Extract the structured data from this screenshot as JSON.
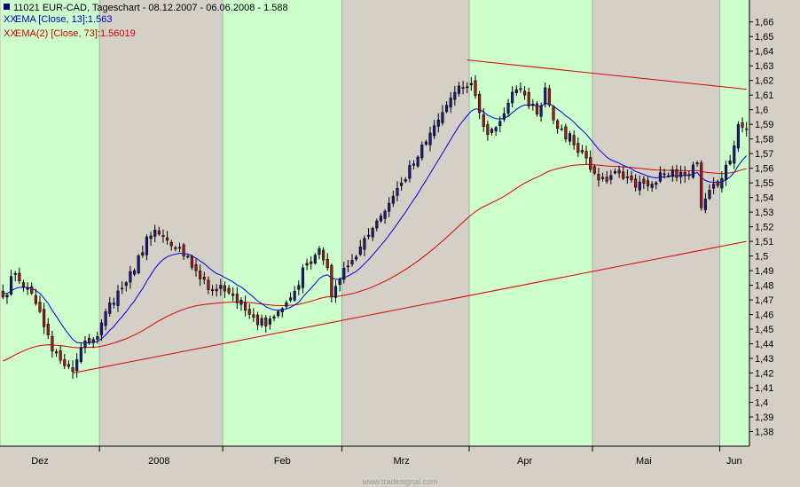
{
  "chart_data": {
    "type": "candlestick",
    "title": "11021  EUR-CAD, Tageschart - 08.12.2007 - 06.06.2008 - 1.588",
    "legend": [
      {
        "marker": "XX",
        "text": "EMA [Close, 13]:1.563",
        "color": "#0000cc"
      },
      {
        "marker": "XX",
        "text": "EMA(2) [Close, 73]:1.56019",
        "color": "#cc0000"
      }
    ],
    "watermark": "www.tradesignal.com",
    "y_axis": {
      "min": 1.37,
      "max": 1.675,
      "side": "right",
      "ticks": [
        "1,38",
        "1,39",
        "1,4",
        "1,41",
        "1,42",
        "1,43",
        "1,44",
        "1,45",
        "1,46",
        "1,47",
        "1,48",
        "1,49",
        "1,5",
        "1,51",
        "1,52",
        "1,53",
        "1,54",
        "1,55",
        "1,56",
        "1,57",
        "1,58",
        "1,59",
        "1,6",
        "1,61",
        "1,62",
        "1,63",
        "1,64",
        "1,65",
        "1,66"
      ]
    },
    "x_axis": {
      "ticks": [
        {
          "label": "Dez",
          "index": 9
        },
        {
          "label": "2008",
          "index": 38
        },
        {
          "label": "Feb",
          "index": 68
        },
        {
          "label": "Mrz",
          "index": 97
        },
        {
          "label": "Apr",
          "index": 127
        },
        {
          "label": "Mai",
          "index": 156
        },
        {
          "label": "Jun",
          "index": 178
        }
      ]
    },
    "bar_count": 182,
    "bands": [
      {
        "from": 0,
        "to": 24,
        "color": "#ccffcc"
      },
      {
        "from": 24,
        "to": 54,
        "color": "#d4d0c8"
      },
      {
        "from": 54,
        "to": 83,
        "color": "#ccffcc"
      },
      {
        "from": 83,
        "to": 114,
        "color": "#d4d0c8"
      },
      {
        "from": 114,
        "to": 144,
        "color": "#ccffcc"
      },
      {
        "from": 144,
        "to": 175,
        "color": "#d4d0c8"
      },
      {
        "from": 175,
        "to": 182,
        "color": "#ccffcc"
      }
    ],
    "close_anchors": [
      [
        0,
        1.472
      ],
      [
        3,
        1.488
      ],
      [
        6,
        1.478
      ],
      [
        9,
        1.462
      ],
      [
        12,
        1.435
      ],
      [
        15,
        1.425
      ],
      [
        17,
        1.421
      ],
      [
        20,
        1.442
      ],
      [
        23,
        1.445
      ],
      [
        26,
        1.468
      ],
      [
        29,
        1.478
      ],
      [
        32,
        1.49
      ],
      [
        35,
        1.513
      ],
      [
        38,
        1.515
      ],
      [
        41,
        1.507
      ],
      [
        44,
        1.5
      ],
      [
        47,
        1.49
      ],
      [
        50,
        1.477
      ],
      [
        53,
        1.48
      ],
      [
        56,
        1.473
      ],
      [
        59,
        1.463
      ],
      [
        62,
        1.453
      ],
      [
        65,
        1.457
      ],
      [
        68,
        1.464
      ],
      [
        71,
        1.476
      ],
      [
        74,
        1.495
      ],
      [
        77,
        1.505
      ],
      [
        79,
        1.492
      ],
      [
        80,
        1.472
      ],
      [
        82,
        1.484
      ],
      [
        85,
        1.497
      ],
      [
        88,
        1.512
      ],
      [
        91,
        1.524
      ],
      [
        94,
        1.536
      ],
      [
        97,
        1.55
      ],
      [
        100,
        1.563
      ],
      [
        103,
        1.578
      ],
      [
        106,
        1.593
      ],
      [
        109,
        1.608
      ],
      [
        112,
        1.615
      ],
      [
        114,
        1.618
      ],
      [
        116,
        1.598
      ],
      [
        118,
        1.583
      ],
      [
        121,
        1.592
      ],
      [
        124,
        1.612
      ],
      [
        127,
        1.61
      ],
      [
        130,
        1.597
      ],
      [
        132,
        1.615
      ],
      [
        134,
        1.593
      ],
      [
        136,
        1.587
      ],
      [
        139,
        1.576
      ],
      [
        142,
        1.567
      ],
      [
        145,
        1.552
      ],
      [
        148,
        1.555
      ],
      [
        151,
        1.553
      ],
      [
        154,
        1.547
      ],
      [
        157,
        1.548
      ],
      [
        160,
        1.557
      ],
      [
        163,
        1.559
      ],
      [
        166,
        1.555
      ],
      [
        169,
        1.563
      ],
      [
        170,
        1.533
      ],
      [
        172,
        1.545
      ],
      [
        175,
        1.553
      ],
      [
        177,
        1.565
      ],
      [
        179,
        1.59
      ],
      [
        180,
        1.588
      ]
    ],
    "ema13_last": 1.563,
    "ema73_last": 1.56019,
    "trendlines": [
      {
        "from": [
          17,
          1.42
        ],
        "to": [
          181,
          1.51
        ],
        "color": "#dd0000"
      },
      {
        "from": [
          113,
          1.634
        ],
        "to": [
          181,
          1.614
        ],
        "color": "#dd0000"
      }
    ]
  }
}
